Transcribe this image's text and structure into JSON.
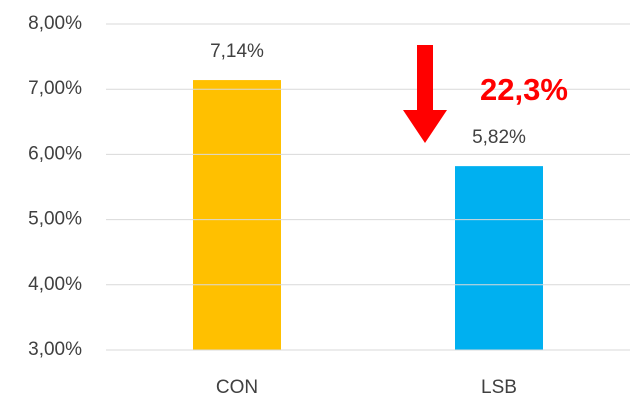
{
  "chart_data": {
    "type": "bar",
    "categories": [
      "CON",
      "LSB"
    ],
    "values": [
      7.14,
      5.82
    ],
    "value_labels": [
      "7,14%",
      "5,82%"
    ],
    "colors": [
      "#ffc000",
      "#00b0f0"
    ],
    "ylim": [
      3,
      8
    ],
    "yticks": [
      {
        "value": 3,
        "label": "3,00%"
      },
      {
        "value": 4,
        "label": "4,00%"
      },
      {
        "value": 5,
        "label": "5,00%"
      },
      {
        "value": 6,
        "label": "6,00%"
      },
      {
        "value": 7,
        "label": "7,00%"
      },
      {
        "value": 8,
        "label": "8,00%"
      }
    ],
    "grid": true,
    "annotation": "22,3%"
  }
}
